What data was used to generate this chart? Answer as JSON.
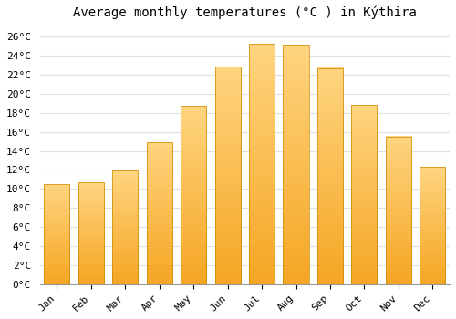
{
  "title": "Average monthly temperatures (°C ) in Kýthira",
  "months": [
    "Jan",
    "Feb",
    "Mar",
    "Apr",
    "May",
    "Jun",
    "Jul",
    "Aug",
    "Sep",
    "Oct",
    "Nov",
    "Dec"
  ],
  "temperatures": [
    10.5,
    10.7,
    11.9,
    14.9,
    18.7,
    22.8,
    25.2,
    25.1,
    22.7,
    18.8,
    15.5,
    12.3
  ],
  "bar_color_bottom": "#F5A623",
  "bar_color_top": "#FFD580",
  "ylim": [
    0,
    27
  ],
  "yticks": [
    0,
    2,
    4,
    6,
    8,
    10,
    12,
    14,
    16,
    18,
    20,
    22,
    24,
    26
  ],
  "background_color": "#ffffff",
  "grid_color": "#e0e0e0",
  "title_fontsize": 10,
  "tick_fontsize": 8,
  "font_family": "monospace"
}
